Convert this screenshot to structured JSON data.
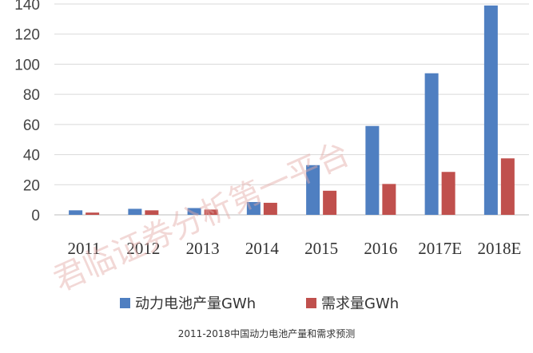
{
  "chart_data": {
    "type": "bar",
    "categories": [
      "2011",
      "2012",
      "2013",
      "2014",
      "2015",
      "2016",
      "2017E",
      "2018E"
    ],
    "series": [
      {
        "name": "动力电池产量GWh",
        "values": [
          3,
          4,
          4.5,
          8.5,
          33,
          59,
          94,
          139
        ],
        "color": "#4f7fc1"
      },
      {
        "name": "需求量GWh",
        "values": [
          1.5,
          3,
          3.5,
          8,
          16,
          20.5,
          28.5,
          37.5
        ],
        "color": "#c0504d"
      }
    ],
    "ylim": [
      0,
      140
    ],
    "yticks": [
      0,
      20,
      40,
      60,
      80,
      100,
      120,
      140
    ],
    "grid": true,
    "legend": "bottom",
    "title": "",
    "xlabel": "",
    "ylabel": ""
  },
  "caption": "2011-2018中国动力电池产量和需求预测",
  "watermark": "君临证券分析第一平台"
}
